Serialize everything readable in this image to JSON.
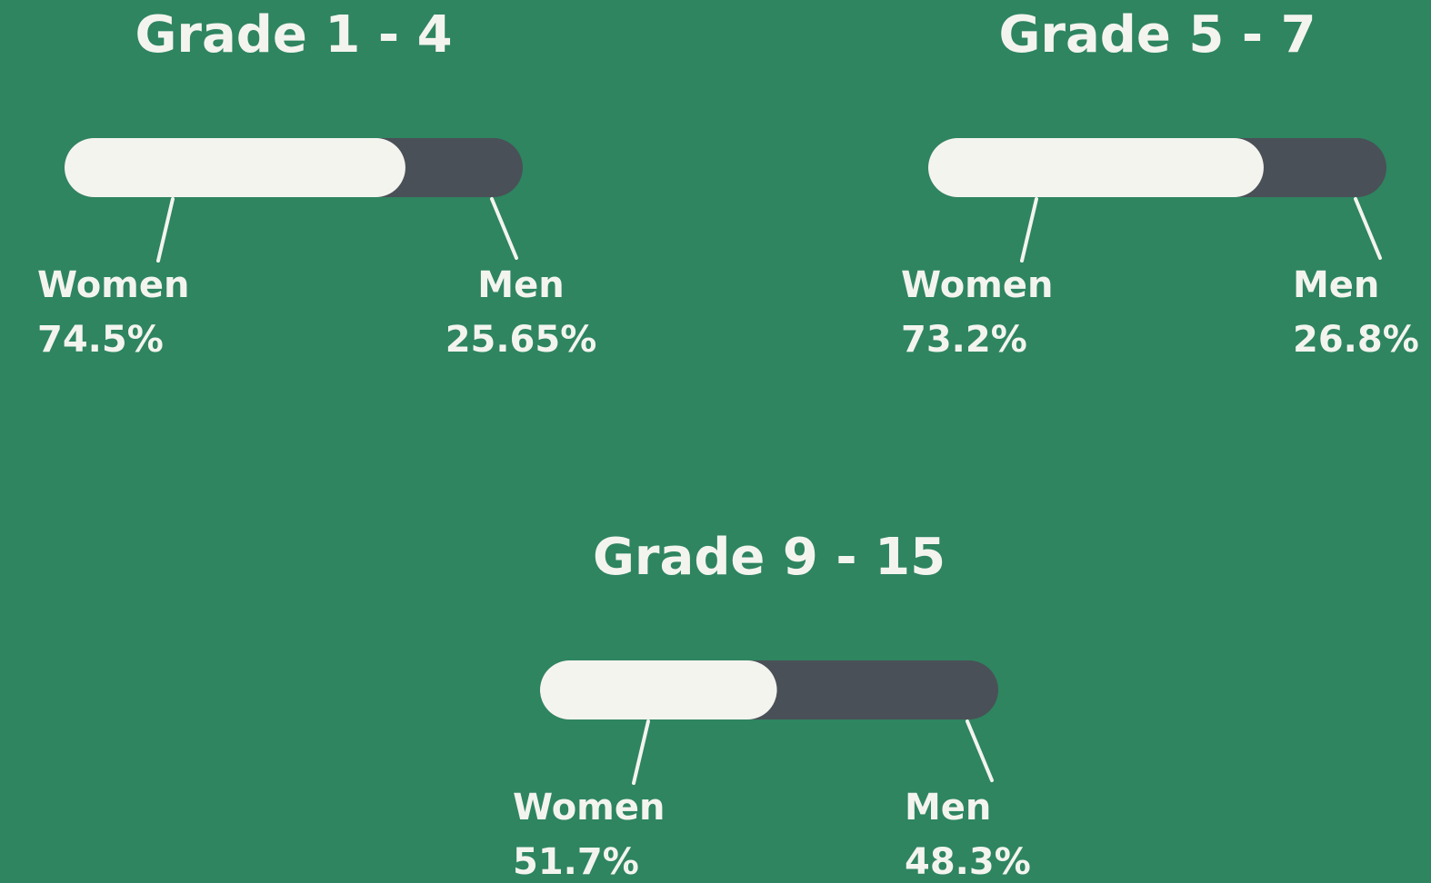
{
  "chart_data": [
    {
      "type": "bar",
      "title": "Grade 1 - 4",
      "categories": [
        "Women",
        "Men"
      ],
      "values": [
        74.5,
        25.65
      ],
      "value_labels": [
        "74.5%",
        "25.65%"
      ],
      "colors": [
        "#f4f4ef",
        "#4a5057"
      ]
    },
    {
      "type": "bar",
      "title": "Grade 5 - 7",
      "categories": [
        "Women",
        "Men"
      ],
      "values": [
        73.2,
        26.8
      ],
      "value_labels": [
        "73.2%",
        "26.8%"
      ],
      "colors": [
        "#f4f4ef",
        "#4a5057"
      ]
    },
    {
      "type": "bar",
      "title": "Grade 9 - 15",
      "categories": [
        "Women",
        "Men"
      ],
      "values": [
        51.7,
        48.3
      ],
      "value_labels": [
        "51.7%",
        "48.3%"
      ],
      "colors": [
        "#f4f4ef",
        "#4a5057"
      ]
    }
  ]
}
